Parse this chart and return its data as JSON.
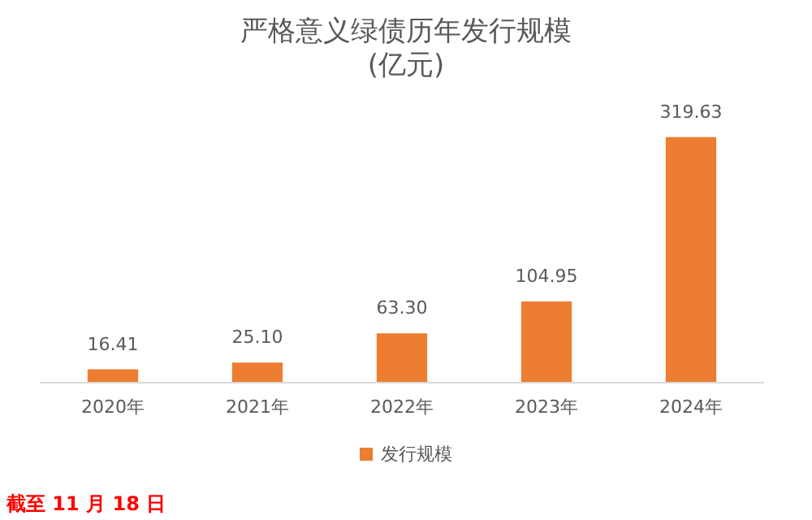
{
  "chart_data": {
    "type": "bar",
    "title": "严格意义绿债历年发行规模",
    "subtitle": "(亿元)",
    "categories": [
      "2020年",
      "2021年",
      "2022年",
      "2023年",
      "2024年"
    ],
    "series": [
      {
        "name": "发行规模",
        "color": "#ed7d31",
        "values": [
          16.41,
          25.1,
          63.3,
          104.95,
          319.63
        ],
        "value_labels": [
          "16.41",
          "25.10",
          "63.30",
          "104.95",
          "319.63"
        ]
      }
    ],
    "legend": "bottom",
    "grid": false,
    "annotations": [
      "截至 11 月 18 日"
    ]
  }
}
